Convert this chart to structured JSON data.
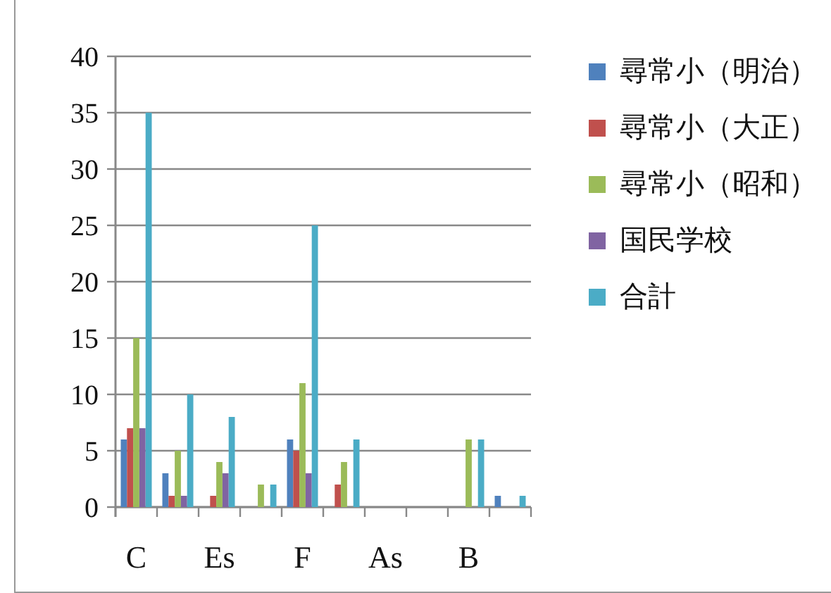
{
  "chart_data": {
    "type": "bar",
    "categories": [
      "C",
      null,
      "Es",
      null,
      "F",
      null,
      "As",
      null,
      "B",
      null
    ],
    "series": [
      {
        "name": "尋常小（明治）",
        "color": "#4f81bd",
        "values": [
          6,
          3,
          null,
          null,
          6,
          null,
          null,
          null,
          null,
          1
        ]
      },
      {
        "name": "尋常小（大正）",
        "color": "#c0504d",
        "values": [
          7,
          1,
          1,
          null,
          5,
          2,
          null,
          null,
          null,
          null
        ]
      },
      {
        "name": "尋常小（昭和）",
        "color": "#9bbb59",
        "values": [
          15,
          5,
          4,
          2,
          11,
          4,
          null,
          null,
          6,
          null
        ]
      },
      {
        "name": "国民学校",
        "color": "#8064a2",
        "values": [
          7,
          1,
          3,
          null,
          3,
          null,
          null,
          null,
          null,
          null
        ]
      },
      {
        "name": "合計",
        "color": "#4bacc6",
        "values": [
          35,
          10,
          8,
          2,
          25,
          6,
          null,
          null,
          6,
          1
        ]
      }
    ],
    "ylim": [
      0,
      40
    ],
    "yticks": [
      0,
      5,
      10,
      15,
      20,
      25,
      30,
      35,
      40
    ],
    "grid": "y",
    "legend": "right"
  }
}
